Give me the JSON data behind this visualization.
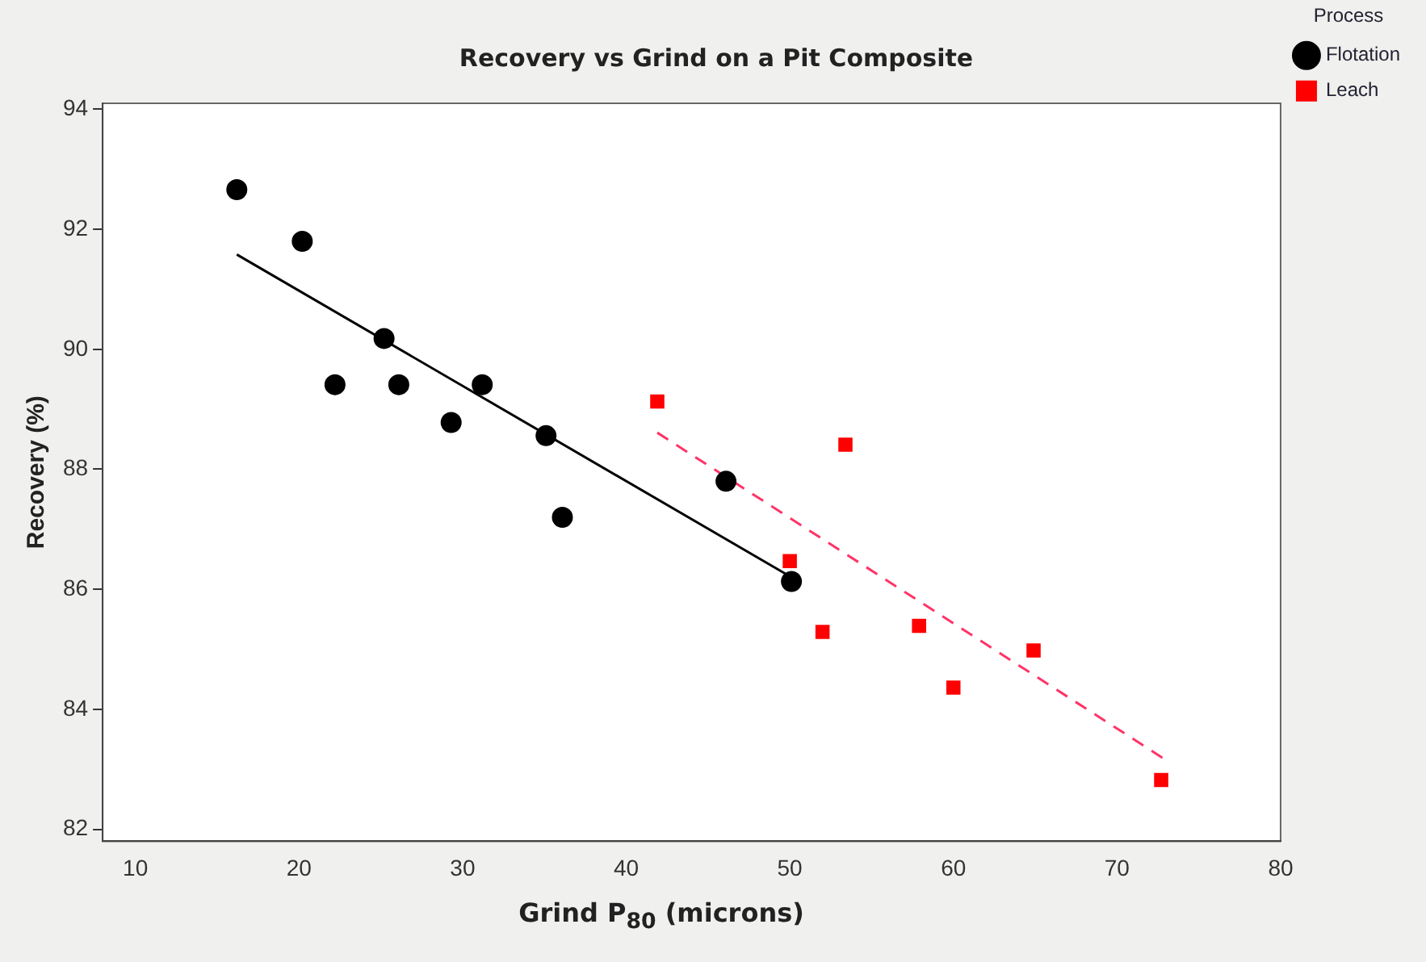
{
  "chart_data": {
    "type": "scatter",
    "title": "Recovery vs Grind on a Pit Composite",
    "xlabel": "Grind P$_{80}$ (microns)",
    "ylabel": "Recovery (%)",
    "legend_title": "Process",
    "legend": "top right",
    "grid": false,
    "xlim": [
      8,
      80
    ],
    "xticks": [
      10,
      20,
      30,
      40,
      50,
      60,
      70,
      80
    ],
    "ylim": [
      81.8,
      94.1
    ],
    "yticks": [
      82,
      84,
      86,
      88,
      90,
      92,
      94
    ],
    "series": [
      {
        "name": "Flotation",
        "color": "#000000",
        "marker": "circle",
        "x": [
          16.2,
          20.2,
          25.2,
          22.2,
          26.1,
          31.2,
          29.3,
          35.1,
          36.1,
          46.1,
          50.1
        ],
        "values": [
          92.66,
          91.8,
          90.18,
          89.41,
          89.41,
          89.41,
          88.78,
          88.56,
          87.2,
          87.8,
          86.13
        ]
      },
      {
        "name": "Leach",
        "color": "#ff0000",
        "marker": "square",
        "x": [
          41.9,
          53.4,
          50.0,
          52.0,
          57.9,
          60.0,
          64.9,
          72.7
        ],
        "values": [
          89.13,
          88.41,
          86.47,
          85.29,
          85.39,
          84.36,
          84.98,
          82.82
        ]
      },
      {
        "type": "line",
        "color": "#000000",
        "line_style": "solid",
        "marker": "none",
        "x": [
          16.2,
          50.1
        ],
        "values": [
          91.58,
          86.2
        ]
      },
      {
        "type": "line",
        "color": "#ff3366",
        "line_style": "dashed",
        "marker": "none",
        "x": [
          41.9,
          72.9
        ],
        "values": [
          88.61,
          83.17
        ]
      }
    ]
  }
}
